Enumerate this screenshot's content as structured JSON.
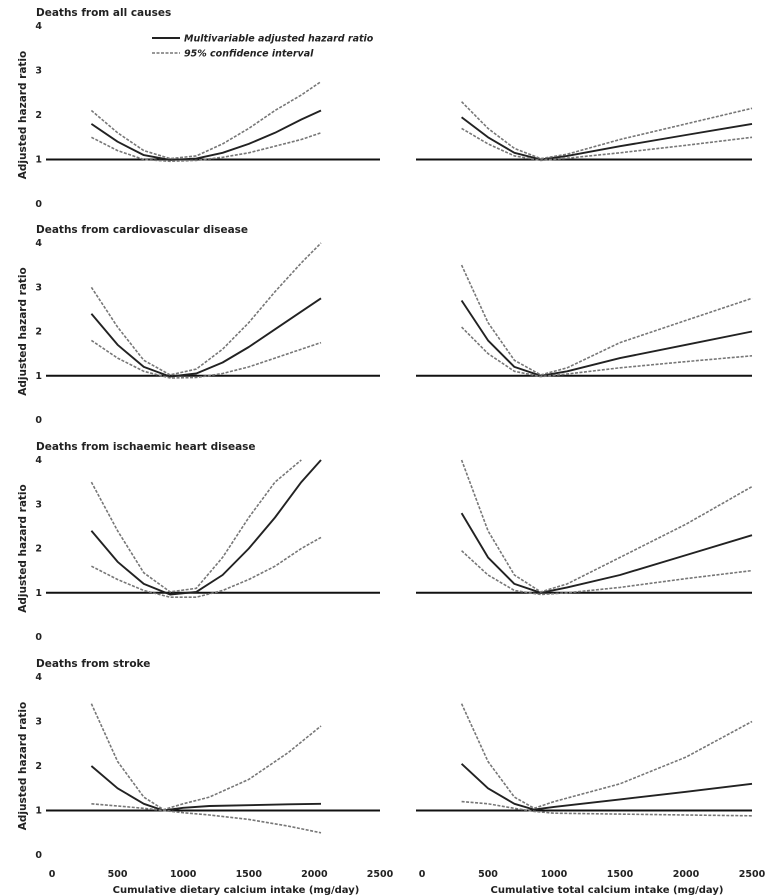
{
  "chart_data": [
    {
      "type": "line",
      "id": "all-causes-dietary",
      "title": "Deaths from all causes",
      "xlabel": "",
      "ylabel": "Adjusted hazard ratio",
      "xlim": [
        0,
        2500
      ],
      "ylim": [
        0,
        4
      ],
      "y_ticks": [
        "0",
        "1",
        "2",
        "3",
        "4"
      ],
      "x_ticks": [],
      "reference_line": 1,
      "legend": {
        "placement": "top-center",
        "entries": [
          "Multivariable adjusted hazard ratio",
          "95% confidence interval"
        ]
      },
      "series": [
        {
          "name": "Multivariable adjusted hazard ratio",
          "style": "solid",
          "x": [
            300,
            500,
            700,
            900,
            1100,
            1300,
            1500,
            1700,
            1900,
            2050
          ],
          "y": [
            1.8,
            1.4,
            1.1,
            0.99,
            1.02,
            1.15,
            1.35,
            1.6,
            1.9,
            2.1
          ]
        },
        {
          "name": "95% confidence interval",
          "style": "dashed",
          "x": [
            300,
            500,
            700,
            900,
            1100,
            1300,
            1500,
            1700,
            1900,
            2050
          ],
          "y": [
            2.1,
            1.6,
            1.2,
            1.02,
            1.08,
            1.35,
            1.7,
            2.1,
            2.45,
            2.75
          ]
        },
        {
          "name": "95% confidence interval",
          "style": "dashed",
          "x": [
            300,
            500,
            700,
            900,
            1100,
            1300,
            1500,
            1700,
            1900,
            2050
          ],
          "y": [
            1.5,
            1.2,
            1.0,
            0.96,
            0.98,
            1.05,
            1.15,
            1.3,
            1.45,
            1.6
          ]
        }
      ]
    },
    {
      "type": "line",
      "id": "all-causes-total",
      "title": "",
      "xlabel": "",
      "ylabel": "",
      "xlim": [
        0,
        2500
      ],
      "ylim": [
        0,
        4
      ],
      "y_ticks": [],
      "x_ticks": [],
      "reference_line": 1,
      "series": [
        {
          "name": "Multivariable adjusted hazard ratio",
          "style": "solid",
          "x": [
            300,
            500,
            700,
            900,
            1100,
            1500,
            2000,
            2500
          ],
          "y": [
            1.95,
            1.5,
            1.15,
            1.0,
            1.08,
            1.3,
            1.55,
            1.8
          ]
        },
        {
          "name": "95% confidence interval",
          "style": "dashed",
          "x": [
            300,
            500,
            700,
            900,
            1100,
            1500,
            2000,
            2500
          ],
          "y": [
            2.3,
            1.7,
            1.25,
            1.02,
            1.12,
            1.45,
            1.8,
            2.15
          ]
        },
        {
          "name": "95% confidence interval",
          "style": "dashed",
          "x": [
            300,
            500,
            700,
            900,
            1100,
            1500,
            2000,
            2500
          ],
          "y": [
            1.7,
            1.35,
            1.08,
            0.98,
            1.03,
            1.15,
            1.32,
            1.5
          ]
        }
      ]
    },
    {
      "type": "line",
      "id": "cardiovascular-dietary",
      "title": "Deaths from cardiovascular disease",
      "xlabel": "",
      "ylabel": "Adjusted hazard ratio",
      "xlim": [
        0,
        2500
      ],
      "ylim": [
        0,
        4
      ],
      "y_ticks": [
        "0",
        "1",
        "2",
        "3",
        "4"
      ],
      "x_ticks": [],
      "reference_line": 1,
      "series": [
        {
          "name": "Multivariable adjusted hazard ratio",
          "style": "solid",
          "x": [
            300,
            500,
            700,
            900,
            1100,
            1300,
            1500,
            1700,
            1900,
            2050
          ],
          "y": [
            2.4,
            1.7,
            1.2,
            0.98,
            1.05,
            1.3,
            1.65,
            2.05,
            2.45,
            2.75
          ]
        },
        {
          "name": "95% confidence interval",
          "style": "dashed",
          "x": [
            300,
            500,
            700,
            900,
            1100,
            1300,
            1500,
            1700,
            1900,
            2050
          ],
          "y": [
            3.0,
            2.1,
            1.35,
            1.02,
            1.15,
            1.6,
            2.2,
            2.9,
            3.55,
            4.0
          ]
        },
        {
          "name": "95% confidence interval",
          "style": "dashed",
          "x": [
            300,
            500,
            700,
            900,
            1100,
            1300,
            1500,
            1700,
            1900,
            2050
          ],
          "y": [
            1.8,
            1.4,
            1.1,
            0.95,
            0.96,
            1.05,
            1.2,
            1.4,
            1.6,
            1.75
          ]
        }
      ]
    },
    {
      "type": "line",
      "id": "cardiovascular-total",
      "title": "",
      "xlabel": "",
      "ylabel": "",
      "xlim": [
        0,
        2500
      ],
      "ylim": [
        0,
        4
      ],
      "y_ticks": [],
      "x_ticks": [],
      "reference_line": 1,
      "series": [
        {
          "name": "Multivariable adjusted hazard ratio",
          "style": "solid",
          "x": [
            300,
            500,
            700,
            900,
            1100,
            1500,
            2000,
            2500
          ],
          "y": [
            2.7,
            1.8,
            1.2,
            1.0,
            1.1,
            1.4,
            1.7,
            2.0
          ]
        },
        {
          "name": "95% confidence interval",
          "style": "dashed",
          "x": [
            300,
            500,
            700,
            900,
            1100,
            1500,
            2000,
            2500
          ],
          "y": [
            3.5,
            2.2,
            1.35,
            1.02,
            1.18,
            1.75,
            2.25,
            2.75
          ]
        },
        {
          "name": "95% confidence interval",
          "style": "dashed",
          "x": [
            300,
            500,
            700,
            900,
            1100,
            1500,
            2000,
            2500
          ],
          "y": [
            2.1,
            1.5,
            1.1,
            0.98,
            1.04,
            1.18,
            1.32,
            1.45
          ]
        }
      ]
    },
    {
      "type": "line",
      "id": "ischemic-dietary",
      "title": "Deaths from ischaemic heart disease",
      "xlabel": "",
      "ylabel": "Adjusted hazard ratio",
      "xlim": [
        0,
        2500
      ],
      "ylim": [
        0,
        4
      ],
      "y_ticks": [
        "0",
        "1",
        "2",
        "3",
        "4"
      ],
      "x_ticks": [],
      "reference_line": 1,
      "series": [
        {
          "name": "Multivariable adjusted hazard ratio",
          "style": "solid",
          "x": [
            300,
            500,
            700,
            900,
            1100,
            1300,
            1500,
            1700,
            1900,
            2050
          ],
          "y": [
            2.4,
            1.7,
            1.2,
            0.96,
            1.02,
            1.4,
            2.0,
            2.7,
            3.5,
            4.0
          ]
        },
        {
          "name": "95% confidence interval",
          "style": "dashed",
          "x": [
            300,
            500,
            700,
            900,
            1100,
            1300,
            1500,
            1700,
            1900
          ],
          "y": [
            3.5,
            2.4,
            1.45,
            1.02,
            1.1,
            1.8,
            2.7,
            3.5,
            4.0
          ]
        },
        {
          "name": "95% confidence interval",
          "style": "dashed",
          "x": [
            300,
            500,
            700,
            900,
            1100,
            1300,
            1500,
            1700,
            1900,
            2050
          ],
          "y": [
            1.6,
            1.3,
            1.05,
            0.9,
            0.9,
            1.05,
            1.3,
            1.6,
            2.0,
            2.25
          ]
        }
      ]
    },
    {
      "type": "line",
      "id": "ischemic-total",
      "title": "",
      "xlabel": "",
      "ylabel": "",
      "xlim": [
        0,
        2500
      ],
      "ylim": [
        0,
        4
      ],
      "y_ticks": [],
      "x_ticks": [],
      "reference_line": 1,
      "series": [
        {
          "name": "Multivariable adjusted hazard ratio",
          "style": "solid",
          "x": [
            300,
            500,
            700,
            900,
            1100,
            1500,
            2000,
            2500
          ],
          "y": [
            2.8,
            1.8,
            1.2,
            1.0,
            1.12,
            1.4,
            1.85,
            2.3
          ]
        },
        {
          "name": "95% confidence interval",
          "style": "dashed",
          "x": [
            300,
            500,
            700,
            900,
            1100,
            1500,
            2000,
            2500
          ],
          "y": [
            4.0,
            2.4,
            1.4,
            1.02,
            1.2,
            1.8,
            2.55,
            3.4
          ]
        },
        {
          "name": "95% confidence interval",
          "style": "dashed",
          "x": [
            300,
            500,
            700,
            900,
            1100,
            1500,
            2000,
            2500
          ],
          "y": [
            1.95,
            1.4,
            1.05,
            0.96,
            1.0,
            1.12,
            1.32,
            1.5
          ]
        }
      ]
    },
    {
      "type": "line",
      "id": "stroke-dietary",
      "title": "Deaths from stroke",
      "xlabel": "Cumulative dietary calcium intake (mg/day)",
      "ylabel": "Adjusted hazard ratio",
      "xlim": [
        0,
        2500
      ],
      "ylim": [
        0,
        4
      ],
      "y_ticks": [
        "0",
        "1",
        "2",
        "3",
        "4"
      ],
      "x_ticks": [
        "0",
        "500",
        "1000",
        "1500",
        "2000",
        "2500"
      ],
      "reference_line": 1,
      "series": [
        {
          "name": "Multivariable adjusted hazard ratio",
          "style": "solid",
          "x": [
            300,
            500,
            700,
            850,
            1000,
            1200,
            1500,
            1800,
            2050
          ],
          "y": [
            2.0,
            1.5,
            1.15,
            1.0,
            1.06,
            1.1,
            1.12,
            1.14,
            1.15
          ]
        },
        {
          "name": "95% confidence interval",
          "style": "dashed",
          "x": [
            300,
            500,
            700,
            850,
            1000,
            1200,
            1500,
            1800,
            2050
          ],
          "y": [
            3.4,
            2.1,
            1.3,
            1.02,
            1.15,
            1.3,
            1.7,
            2.3,
            2.9
          ]
        },
        {
          "name": "95% confidence interval",
          "style": "dashed",
          "x": [
            300,
            500,
            700,
            850,
            1000,
            1200,
            1500,
            1800,
            2050
          ],
          "y": [
            1.15,
            1.1,
            1.05,
            1.0,
            0.95,
            0.9,
            0.8,
            0.65,
            0.5
          ]
        }
      ]
    },
    {
      "type": "line",
      "id": "stroke-total",
      "title": "",
      "xlabel": "Cumulative total calcium intake (mg/day)",
      "ylabel": "",
      "xlim": [
        0,
        2500
      ],
      "ylim": [
        0,
        4
      ],
      "y_ticks": [],
      "x_ticks": [
        "0",
        "500",
        "1000",
        "1500",
        "2000",
        "2500"
      ],
      "reference_line": 1,
      "series": [
        {
          "name": "Multivariable adjusted hazard ratio",
          "style": "solid",
          "x": [
            300,
            500,
            700,
            850,
            1000,
            1500,
            2000,
            2500
          ],
          "y": [
            2.05,
            1.5,
            1.15,
            1.02,
            1.08,
            1.25,
            1.42,
            1.6
          ]
        },
        {
          "name": "95% confidence interval",
          "style": "dashed",
          "x": [
            300,
            500,
            700,
            850,
            1000,
            1500,
            2000,
            2500
          ],
          "y": [
            3.4,
            2.1,
            1.3,
            1.05,
            1.2,
            1.6,
            2.2,
            3.0
          ]
        },
        {
          "name": "95% confidence interval",
          "style": "dashed",
          "x": [
            300,
            500,
            700,
            850,
            1000,
            1500,
            2000,
            2500
          ],
          "y": [
            1.2,
            1.15,
            1.05,
            0.98,
            0.94,
            0.92,
            0.9,
            0.88
          ]
        }
      ]
    }
  ]
}
